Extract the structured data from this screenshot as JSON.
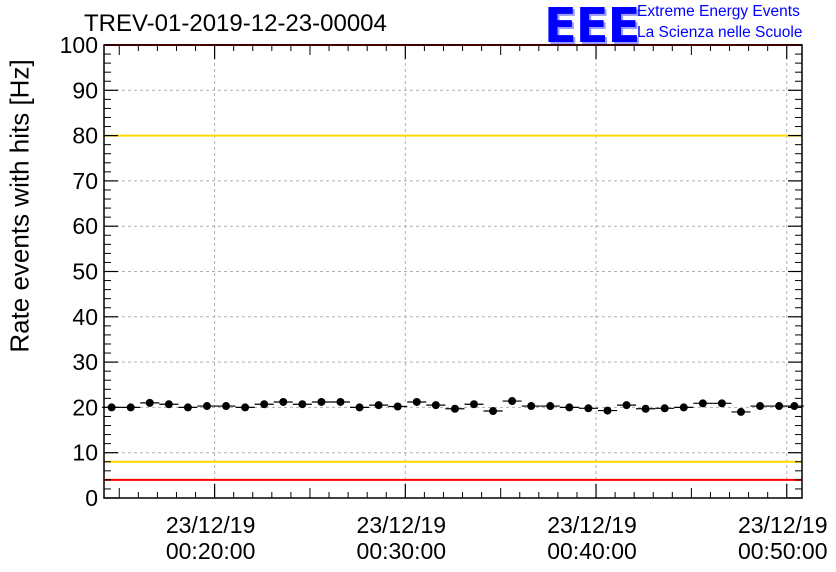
{
  "header": {
    "run_title": "TREV-01-2019-12-23-00004",
    "logo_text": "EEE",
    "logo_line1": "Extreme Energy Events",
    "logo_line2": "La Scienza nelle Scuole"
  },
  "colors": {
    "red_limit": "#ff0000",
    "yellow_limit": "#ffd700",
    "points": "#000000",
    "grid": "#b0b0b0",
    "logo": "#0000ff"
  },
  "chart_data": {
    "type": "scatter",
    "ylabel": "Rate events with hits [Hz]",
    "ylim": [
      0,
      100
    ],
    "y_ticks": [
      "0",
      "10",
      "20",
      "30",
      "40",
      "50",
      "60",
      "70",
      "80",
      "90",
      "100"
    ],
    "x_unit": "minutes",
    "xlim": [
      14.2,
      50.8
    ],
    "x_ticks": [
      {
        "x": 20,
        "date": "23/12/19",
        "time": "00:20:00"
      },
      {
        "x": 30,
        "date": "23/12/19",
        "time": "00:30:00"
      },
      {
        "x": 40,
        "date": "23/12/19",
        "time": "00:40:00"
      },
      {
        "x": 50,
        "date": "23/12/19",
        "time": "00:50:00"
      }
    ],
    "grid": true,
    "reference_lines": [
      {
        "y": 100,
        "color": "red"
      },
      {
        "y": 80,
        "color": "yellow"
      },
      {
        "y": 8,
        "color": "yellow"
      },
      {
        "y": 4,
        "color": "red"
      }
    ],
    "series": [
      {
        "x": [
          14.6,
          15.6,
          16.6,
          17.6,
          18.6,
          19.6,
          20.6,
          21.6,
          22.6,
          23.6,
          24.6,
          25.6,
          26.6,
          27.6,
          28.6,
          29.6,
          30.6,
          31.6,
          32.6,
          33.6,
          34.6,
          35.6,
          36.6,
          37.6,
          38.6,
          39.6,
          40.6,
          41.6,
          42.6,
          43.6,
          44.6,
          45.6,
          46.6,
          47.6,
          48.6,
          49.6,
          50.4
        ],
        "y": [
          20.0,
          20.0,
          21.0,
          20.7,
          20.0,
          20.3,
          20.3,
          20.0,
          20.7,
          21.2,
          20.7,
          21.2,
          21.2,
          20.0,
          20.5,
          20.2,
          21.2,
          20.5,
          19.7,
          20.7,
          19.2,
          21.4,
          20.3,
          20.3,
          20.0,
          19.8,
          19.3,
          20.5,
          19.7,
          19.8,
          20.0,
          20.9,
          20.9,
          19.0,
          20.3,
          20.3,
          20.3
        ]
      }
    ]
  }
}
